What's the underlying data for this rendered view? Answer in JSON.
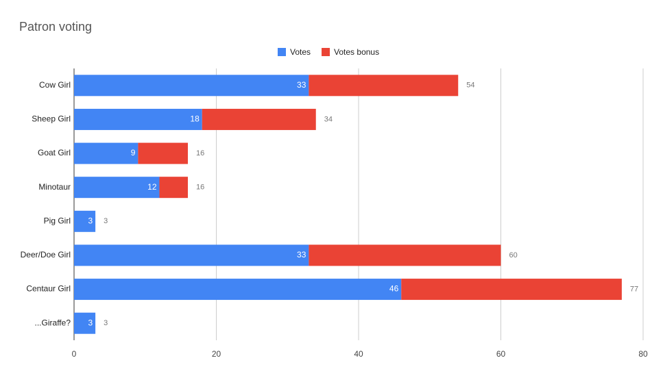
{
  "chart_data": {
    "type": "stacked-bar-horizontal",
    "title": "Patron voting",
    "categories": [
      "Cow Girl",
      "Sheep Girl",
      "Goat Girl",
      "Minotaur",
      "Pig Girl",
      "Deer/Doe Girl",
      "Centaur Girl",
      "...Giraffe?"
    ],
    "series": [
      {
        "name": "Votes",
        "color": "#4285f4",
        "values": [
          33,
          18,
          9,
          12,
          3,
          33,
          46,
          3
        ]
      },
      {
        "name": "Votes bonus",
        "color": "#ea4335",
        "values": [
          21,
          16,
          7,
          4,
          0,
          27,
          31,
          0
        ]
      }
    ],
    "totals": [
      54,
      34,
      16,
      16,
      3,
      60,
      77,
      3
    ],
    "xlim": [
      0,
      80
    ],
    "xticks": [
      0,
      20,
      40,
      60,
      80
    ],
    "grid": true,
    "legend": "top"
  }
}
